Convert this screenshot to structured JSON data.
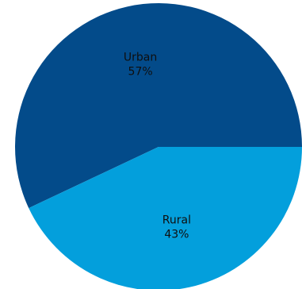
{
  "chart_data": {
    "type": "pie",
    "title": "",
    "slices": [
      {
        "label": "Urban",
        "value": 57,
        "display": "57%",
        "color": "#034b8a"
      },
      {
        "label": "Rural",
        "value": 43,
        "display": "43%",
        "color": "#039fdc"
      }
    ],
    "legend": "none",
    "label_placement": "inside"
  }
}
